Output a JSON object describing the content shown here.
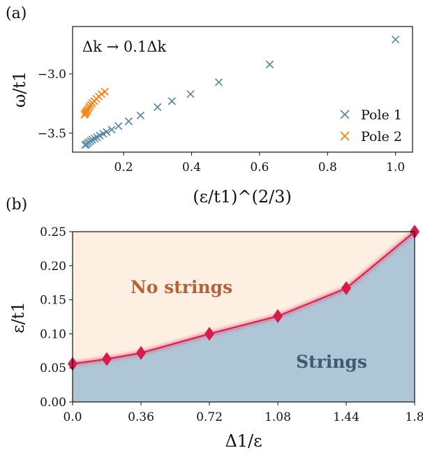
{
  "chart_data": [
    {
      "panel_label": "(a)",
      "type": "scatter",
      "annotation": "Δk → 0.1Δk",
      "xlabel": "(ε/t1)^(2/3)",
      "ylabel": "ω/t1",
      "xlim": [
        0.05,
        1.05
      ],
      "ylim": [
        -3.66,
        -2.6
      ],
      "xticks": [
        0.2,
        0.4,
        0.6,
        0.8,
        1.0
      ],
      "xtick_labels": [
        "0.2",
        "0.4",
        "0.6",
        "0.8",
        "1.0"
      ],
      "yticks": [
        -3.5,
        -3.0
      ],
      "ytick_labels": [
        "−3.5",
        "−3.0"
      ],
      "grid": false,
      "legend_position": "bottom-right",
      "series": [
        {
          "name": "Pole 1",
          "color": "#5b87a8",
          "marker": "x",
          "points": [
            [
              1.0,
              -2.71
            ],
            [
              0.63,
              -2.92
            ],
            [
              0.48,
              -3.07
            ],
            [
              0.397,
              -3.17
            ],
            [
              0.342,
              -3.23
            ],
            [
              0.3,
              -3.28
            ],
            [
              0.25,
              -3.35
            ],
            [
              0.215,
              -3.4
            ],
            [
              0.185,
              -3.44
            ],
            [
              0.165,
              -3.47
            ],
            [
              0.15,
              -3.49
            ],
            [
              0.14,
              -3.505
            ],
            [
              0.13,
              -3.52
            ],
            [
              0.122,
              -3.535
            ],
            [
              0.115,
              -3.545
            ],
            [
              0.108,
              -3.555
            ],
            [
              0.103,
              -3.565
            ],
            [
              0.098,
              -3.575
            ],
            [
              0.094,
              -3.585
            ],
            [
              0.09,
              -3.595
            ],
            [
              0.087,
              -3.6
            ]
          ]
        },
        {
          "name": "Pole 2",
          "color": "#ff7f0e",
          "marker": "x",
          "points": [
            [
              0.145,
              -3.15
            ],
            [
              0.135,
              -3.17
            ],
            [
              0.127,
              -3.19
            ],
            [
              0.12,
              -3.21
            ],
            [
              0.114,
              -3.23
            ],
            [
              0.108,
              -3.245
            ],
            [
              0.104,
              -3.26
            ],
            [
              0.1,
              -3.275
            ],
            [
              0.097,
              -3.29
            ],
            [
              0.094,
              -3.305
            ],
            [
              0.091,
              -3.315
            ],
            [
              0.089,
              -3.325
            ],
            [
              0.087,
              -3.335
            ],
            [
              0.085,
              -3.345
            ]
          ]
        }
      ]
    },
    {
      "panel_label": "(b)",
      "type": "area",
      "xlabel": "Δ1/ε",
      "ylabel": "ε/t1",
      "xlim": [
        0.0,
        1.8
      ],
      "ylim": [
        0.0,
        0.25
      ],
      "xticks": [
        0.0,
        0.36,
        0.72,
        1.08,
        1.44,
        1.8
      ],
      "xtick_labels": [
        "0.0",
        "0.36",
        "0.72",
        "1.08",
        "1.44",
        "1.8"
      ],
      "yticks": [
        0.0,
        0.05,
        0.1,
        0.15,
        0.2,
        0.25
      ],
      "ytick_labels": [
        "0.00",
        "0.05",
        "0.10",
        "0.15",
        "0.20",
        "0.25"
      ],
      "grid": false,
      "region_labels": [
        "No strings",
        "Strings"
      ],
      "colors": {
        "upper_region": "#fdf0e2",
        "lower_region": "#aec6d5",
        "boundary": "#d81b4a",
        "upper_label": "#b5623a",
        "lower_label": "#3d5a73"
      },
      "boundary_points": {
        "x": [
          0.0,
          0.18,
          0.36,
          0.72,
          1.08,
          1.44,
          1.8
        ],
        "y": [
          0.056,
          0.063,
          0.072,
          0.1,
          0.126,
          0.167,
          0.25
        ]
      }
    }
  ]
}
